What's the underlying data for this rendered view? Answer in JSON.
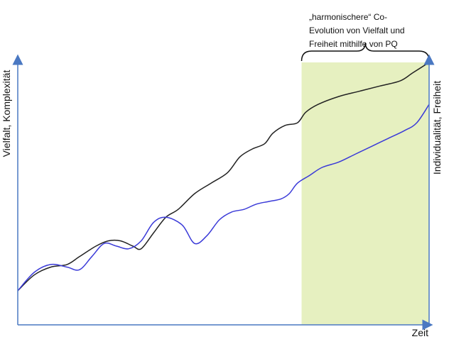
{
  "chart_data": {
    "type": "line",
    "title": "",
    "xlabel": "Zeit",
    "ylabel": "Vielfalt, Komplexität",
    "y2label": "Individualität, Freiheit",
    "grid": false,
    "legend": "none",
    "x_range": [
      0,
      100
    ],
    "y_range": [
      0,
      100
    ],
    "highlight": {
      "x_range": [
        69,
        100
      ],
      "color": "#e6f0c0",
      "annotation": [
        "„harmonischere“ Co-",
        "Evolution von Vielfalt und",
        "Freiheit mithilfe von PQ"
      ]
    },
    "series": [
      {
        "color": "#222222",
        "x": [
          0,
          4,
          8,
          12,
          15,
          19,
          22,
          25,
          28,
          30,
          33,
          36,
          39,
          43,
          47,
          51,
          54,
          57,
          60,
          62,
          65,
          68,
          70,
          73,
          78,
          83,
          88,
          93,
          96,
          100
        ],
        "y": [
          13,
          19,
          22,
          23,
          26,
          30,
          32,
          32,
          30,
          29,
          35,
          41,
          44,
          50,
          54,
          58,
          64,
          67,
          69,
          73,
          76,
          77,
          81,
          84,
          87,
          89,
          91,
          93,
          96,
          100
        ]
      },
      {
        "color": "#3a3ad8",
        "x": [
          0,
          4,
          8,
          12,
          15,
          18,
          21,
          24,
          27,
          30,
          33,
          36,
          40,
          43,
          46,
          49,
          52,
          55,
          58,
          61,
          64,
          66,
          68,
          71,
          74,
          78,
          82,
          86,
          90,
          94,
          97,
          100
        ],
        "y": [
          13,
          20,
          23,
          22,
          21,
          26,
          31,
          30,
          29,
          32,
          39,
          41,
          38,
          31,
          34,
          40,
          43,
          44,
          46,
          47,
          48,
          50,
          54,
          57,
          60,
          62,
          65,
          68,
          71,
          74,
          77,
          84
        ]
      }
    ]
  }
}
